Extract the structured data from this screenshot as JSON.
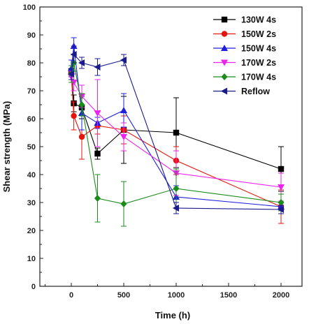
{
  "chart_data": {
    "type": "line",
    "title": "",
    "xlabel": "Time (h)",
    "ylabel": "Shear strength (MPa)",
    "xlim": [
      -300,
      2200
    ],
    "ylim": [
      0,
      100
    ],
    "xticks": [
      0,
      500,
      1000,
      1500,
      2000
    ],
    "yticks": [
      0,
      10,
      20,
      30,
      40,
      50,
      60,
      70,
      80,
      90,
      100
    ],
    "grid": false,
    "legend_position": "top-right",
    "series": [
      {
        "name": "130W 4s",
        "color": "#000000",
        "marker": "square",
        "x": [
          0,
          24,
          100,
          250,
          500,
          1000,
          2000
        ],
        "y": [
          77,
          65.5,
          64,
          47.5,
          56,
          55,
          42
        ],
        "err": [
          2,
          3,
          4,
          2,
          12,
          12.5,
          8
        ]
      },
      {
        "name": "150W 2s",
        "color": "#e8140c",
        "marker": "circle",
        "x": [
          0,
          24,
          100,
          250,
          500,
          1000,
          2000
        ],
        "y": [
          76,
          61,
          53.5,
          57.5,
          56,
          45,
          28.5
        ],
        "err": [
          3,
          5,
          8,
          3,
          5,
          5,
          6
        ]
      },
      {
        "name": "150W 4s",
        "color": "#1f1fe0",
        "marker": "triangle-up",
        "x": [
          0,
          24,
          100,
          250,
          500,
          1000,
          2000
        ],
        "y": [
          78,
          86,
          62,
          58.5,
          63,
          32,
          28.5
        ],
        "err": [
          3,
          3,
          6,
          2,
          6,
          4,
          1.5
        ]
      },
      {
        "name": "170W 2s",
        "color": "#ee22ee",
        "marker": "triangle-down",
        "x": [
          0,
          24,
          100,
          250,
          500,
          1000,
          2000
        ],
        "y": [
          75,
          73,
          68,
          62,
          53.5,
          40.5,
          35.5
        ],
        "err": [
          2,
          3,
          4,
          12,
          5,
          8,
          5
        ]
      },
      {
        "name": "170W 4s",
        "color": "#1a8c1a",
        "marker": "diamond",
        "x": [
          0,
          24,
          100,
          250,
          500,
          1000,
          2000
        ],
        "y": [
          76,
          80,
          65,
          31.5,
          29.5,
          35,
          30
        ],
        "err": [
          3,
          3,
          4,
          8.5,
          8,
          7,
          3
        ]
      },
      {
        "name": "Reflow",
        "color": "#1a1a8c",
        "marker": "triangle-left",
        "x": [
          0,
          24,
          100,
          250,
          500,
          1000,
          2000
        ],
        "y": [
          76,
          83,
          80,
          78.5,
          81,
          28,
          27.5
        ],
        "err": [
          2,
          3,
          2,
          3,
          2,
          2,
          1.5
        ]
      }
    ]
  }
}
